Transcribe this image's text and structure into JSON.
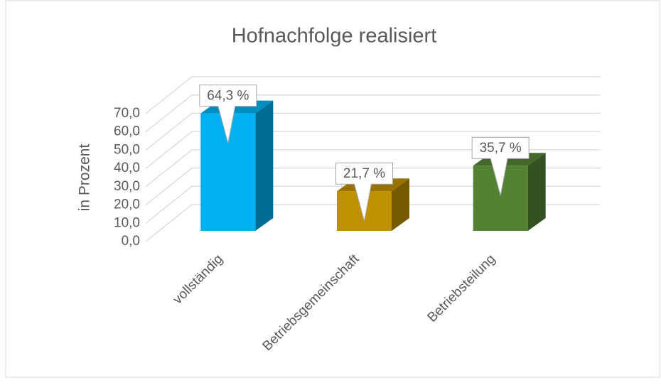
{
  "chart_data": {
    "type": "bar3d",
    "title": "Hofnachfolge realisiert",
    "y_label": "in Prozent",
    "categories": [
      "vollständig",
      "Betriebsgemeinschaft",
      "Betriebsteilung"
    ],
    "values": [
      64.3,
      21.7,
      35.7
    ],
    "value_labels": [
      "64,3 %",
      "21,7 %",
      "35,7 %"
    ],
    "colors": [
      "#00b0f0",
      "#bf9000",
      "#548235"
    ],
    "ylim": [
      0,
      70
    ],
    "yticks": [
      {
        "value": 0,
        "label": "0,0"
      },
      {
        "value": 10,
        "label": "10,0"
      },
      {
        "value": 20,
        "label": "20,0"
      },
      {
        "value": 30,
        "label": "30,0"
      },
      {
        "value": 40,
        "label": "40,0"
      },
      {
        "value": 50,
        "label": "50,0"
      },
      {
        "value": 60,
        "label": "60,0"
      },
      {
        "value": 70,
        "label": "70,0"
      }
    ],
    "grid": true
  }
}
